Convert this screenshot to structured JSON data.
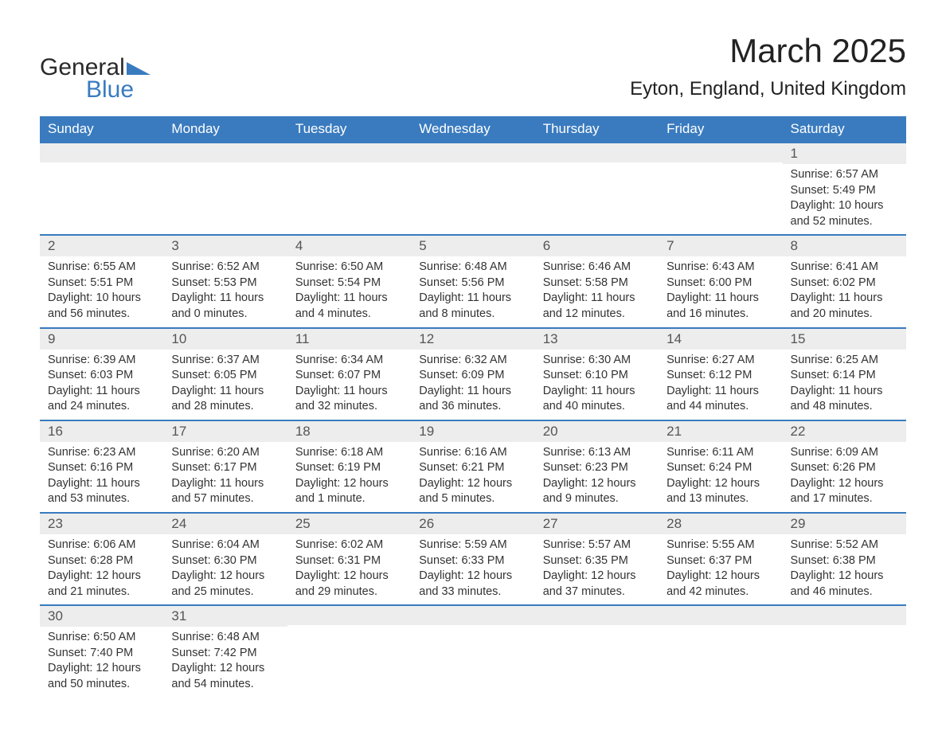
{
  "colors": {
    "header_bg": "#3a7bbf",
    "header_text": "#ffffff",
    "daynum_bg": "#ededed",
    "daynum_text": "#555555",
    "row_divider": "#3a7bbf",
    "body_text": "#333333",
    "page_bg": "#ffffff",
    "logo_dark": "#2a2a2a",
    "logo_blue": "#3a7bbf"
  },
  "typography": {
    "font_family": "Arial, Helvetica, sans-serif",
    "month_title_size_pt": 32,
    "location_size_pt": 18,
    "weekday_header_size_pt": 13,
    "daynum_size_pt": 13,
    "body_size_pt": 11
  },
  "logo": {
    "line1": "General",
    "line2": "Blue"
  },
  "title": "March 2025",
  "location": "Eyton, England, United Kingdom",
  "weekdays": [
    "Sunday",
    "Monday",
    "Tuesday",
    "Wednesday",
    "Thursday",
    "Friday",
    "Saturday"
  ],
  "weeks": [
    [
      {
        "day": "",
        "sunrise": "",
        "sunset": "",
        "daylight": ""
      },
      {
        "day": "",
        "sunrise": "",
        "sunset": "",
        "daylight": ""
      },
      {
        "day": "",
        "sunrise": "",
        "sunset": "",
        "daylight": ""
      },
      {
        "day": "",
        "sunrise": "",
        "sunset": "",
        "daylight": ""
      },
      {
        "day": "",
        "sunrise": "",
        "sunset": "",
        "daylight": ""
      },
      {
        "day": "",
        "sunrise": "",
        "sunset": "",
        "daylight": ""
      },
      {
        "day": "1",
        "sunrise": "Sunrise: 6:57 AM",
        "sunset": "Sunset: 5:49 PM",
        "daylight": "Daylight: 10 hours and 52 minutes."
      }
    ],
    [
      {
        "day": "2",
        "sunrise": "Sunrise: 6:55 AM",
        "sunset": "Sunset: 5:51 PM",
        "daylight": "Daylight: 10 hours and 56 minutes."
      },
      {
        "day": "3",
        "sunrise": "Sunrise: 6:52 AM",
        "sunset": "Sunset: 5:53 PM",
        "daylight": "Daylight: 11 hours and 0 minutes."
      },
      {
        "day": "4",
        "sunrise": "Sunrise: 6:50 AM",
        "sunset": "Sunset: 5:54 PM",
        "daylight": "Daylight: 11 hours and 4 minutes."
      },
      {
        "day": "5",
        "sunrise": "Sunrise: 6:48 AM",
        "sunset": "Sunset: 5:56 PM",
        "daylight": "Daylight: 11 hours and 8 minutes."
      },
      {
        "day": "6",
        "sunrise": "Sunrise: 6:46 AM",
        "sunset": "Sunset: 5:58 PM",
        "daylight": "Daylight: 11 hours and 12 minutes."
      },
      {
        "day": "7",
        "sunrise": "Sunrise: 6:43 AM",
        "sunset": "Sunset: 6:00 PM",
        "daylight": "Daylight: 11 hours and 16 minutes."
      },
      {
        "day": "8",
        "sunrise": "Sunrise: 6:41 AM",
        "sunset": "Sunset: 6:02 PM",
        "daylight": "Daylight: 11 hours and 20 minutes."
      }
    ],
    [
      {
        "day": "9",
        "sunrise": "Sunrise: 6:39 AM",
        "sunset": "Sunset: 6:03 PM",
        "daylight": "Daylight: 11 hours and 24 minutes."
      },
      {
        "day": "10",
        "sunrise": "Sunrise: 6:37 AM",
        "sunset": "Sunset: 6:05 PM",
        "daylight": "Daylight: 11 hours and 28 minutes."
      },
      {
        "day": "11",
        "sunrise": "Sunrise: 6:34 AM",
        "sunset": "Sunset: 6:07 PM",
        "daylight": "Daylight: 11 hours and 32 minutes."
      },
      {
        "day": "12",
        "sunrise": "Sunrise: 6:32 AM",
        "sunset": "Sunset: 6:09 PM",
        "daylight": "Daylight: 11 hours and 36 minutes."
      },
      {
        "day": "13",
        "sunrise": "Sunrise: 6:30 AM",
        "sunset": "Sunset: 6:10 PM",
        "daylight": "Daylight: 11 hours and 40 minutes."
      },
      {
        "day": "14",
        "sunrise": "Sunrise: 6:27 AM",
        "sunset": "Sunset: 6:12 PM",
        "daylight": "Daylight: 11 hours and 44 minutes."
      },
      {
        "day": "15",
        "sunrise": "Sunrise: 6:25 AM",
        "sunset": "Sunset: 6:14 PM",
        "daylight": "Daylight: 11 hours and 48 minutes."
      }
    ],
    [
      {
        "day": "16",
        "sunrise": "Sunrise: 6:23 AM",
        "sunset": "Sunset: 6:16 PM",
        "daylight": "Daylight: 11 hours and 53 minutes."
      },
      {
        "day": "17",
        "sunrise": "Sunrise: 6:20 AM",
        "sunset": "Sunset: 6:17 PM",
        "daylight": "Daylight: 11 hours and 57 minutes."
      },
      {
        "day": "18",
        "sunrise": "Sunrise: 6:18 AM",
        "sunset": "Sunset: 6:19 PM",
        "daylight": "Daylight: 12 hours and 1 minute."
      },
      {
        "day": "19",
        "sunrise": "Sunrise: 6:16 AM",
        "sunset": "Sunset: 6:21 PM",
        "daylight": "Daylight: 12 hours and 5 minutes."
      },
      {
        "day": "20",
        "sunrise": "Sunrise: 6:13 AM",
        "sunset": "Sunset: 6:23 PM",
        "daylight": "Daylight: 12 hours and 9 minutes."
      },
      {
        "day": "21",
        "sunrise": "Sunrise: 6:11 AM",
        "sunset": "Sunset: 6:24 PM",
        "daylight": "Daylight: 12 hours and 13 minutes."
      },
      {
        "day": "22",
        "sunrise": "Sunrise: 6:09 AM",
        "sunset": "Sunset: 6:26 PM",
        "daylight": "Daylight: 12 hours and 17 minutes."
      }
    ],
    [
      {
        "day": "23",
        "sunrise": "Sunrise: 6:06 AM",
        "sunset": "Sunset: 6:28 PM",
        "daylight": "Daylight: 12 hours and 21 minutes."
      },
      {
        "day": "24",
        "sunrise": "Sunrise: 6:04 AM",
        "sunset": "Sunset: 6:30 PM",
        "daylight": "Daylight: 12 hours and 25 minutes."
      },
      {
        "day": "25",
        "sunrise": "Sunrise: 6:02 AM",
        "sunset": "Sunset: 6:31 PM",
        "daylight": "Daylight: 12 hours and 29 minutes."
      },
      {
        "day": "26",
        "sunrise": "Sunrise: 5:59 AM",
        "sunset": "Sunset: 6:33 PM",
        "daylight": "Daylight: 12 hours and 33 minutes."
      },
      {
        "day": "27",
        "sunrise": "Sunrise: 5:57 AM",
        "sunset": "Sunset: 6:35 PM",
        "daylight": "Daylight: 12 hours and 37 minutes."
      },
      {
        "day": "28",
        "sunrise": "Sunrise: 5:55 AM",
        "sunset": "Sunset: 6:37 PM",
        "daylight": "Daylight: 12 hours and 42 minutes."
      },
      {
        "day": "29",
        "sunrise": "Sunrise: 5:52 AM",
        "sunset": "Sunset: 6:38 PM",
        "daylight": "Daylight: 12 hours and 46 minutes."
      }
    ],
    [
      {
        "day": "30",
        "sunrise": "Sunrise: 6:50 AM",
        "sunset": "Sunset: 7:40 PM",
        "daylight": "Daylight: 12 hours and 50 minutes."
      },
      {
        "day": "31",
        "sunrise": "Sunrise: 6:48 AM",
        "sunset": "Sunset: 7:42 PM",
        "daylight": "Daylight: 12 hours and 54 minutes."
      },
      {
        "day": "",
        "sunrise": "",
        "sunset": "",
        "daylight": ""
      },
      {
        "day": "",
        "sunrise": "",
        "sunset": "",
        "daylight": ""
      },
      {
        "day": "",
        "sunrise": "",
        "sunset": "",
        "daylight": ""
      },
      {
        "day": "",
        "sunrise": "",
        "sunset": "",
        "daylight": ""
      },
      {
        "day": "",
        "sunrise": "",
        "sunset": "",
        "daylight": ""
      }
    ]
  ]
}
